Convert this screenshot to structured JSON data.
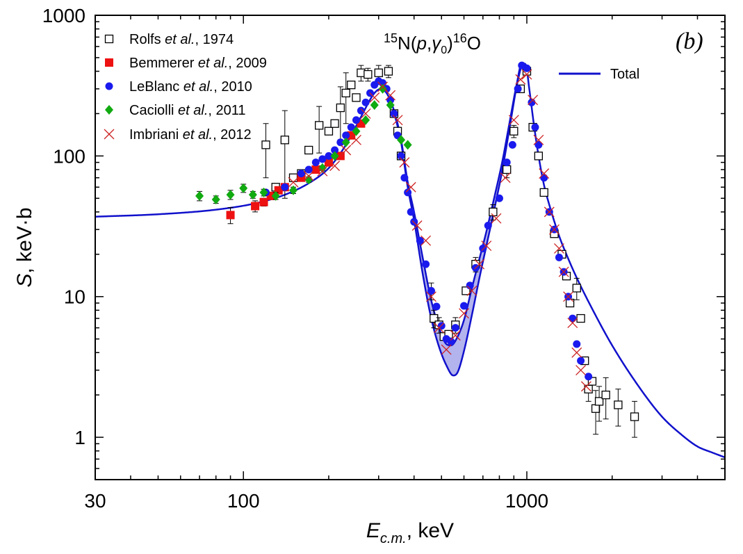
{
  "chart_data": {
    "type": "scatter",
    "xscale": "log",
    "yscale": "log",
    "xlim": [
      30,
      5000
    ],
    "ylim": [
      0.5,
      1000
    ],
    "panel_label": "(b)",
    "reaction": {
      "pre_sup": "15",
      "element": "N",
      "paren_open": "(",
      "projectile": "p",
      "comma": ",",
      "gamma": "γ",
      "gamma_sub": "0",
      "paren_close": ")",
      "post_sup": "16",
      "product": "O"
    },
    "xlabel": {
      "symbol": "E",
      "subscript": "c.m.",
      "rest": ", keV"
    },
    "ylabel": {
      "symbol": "S",
      "rest": ", keV·b"
    },
    "x_ticks": [
      {
        "value": 30,
        "label": "30"
      },
      {
        "value": 100,
        "label": "100"
      },
      {
        "value": 1000,
        "label": "1000"
      }
    ],
    "y_ticks": [
      {
        "value": 1,
        "label": "1"
      },
      {
        "value": 10,
        "label": "10"
      },
      {
        "value": 100,
        "label": "100"
      },
      {
        "value": 1000,
        "label": "1000"
      }
    ],
    "fit": {
      "name": "Total",
      "color": "#1111cc",
      "band_color": "#b3b3ee",
      "upper_x": [
        30,
        50,
        80,
        110,
        140,
        170,
        200,
        230,
        260,
        290,
        305,
        320,
        340,
        360,
        380,
        400,
        430,
        460,
        490,
        520,
        540,
        570,
        600,
        640,
        680,
        720,
        770,
        820,
        870,
        920,
        960,
        990,
        1020,
        1060,
        1100,
        1150,
        1200,
        1300,
        1400,
        1500,
        1700,
        2000,
        2500,
        3000,
        3500,
        4000,
        4500,
        5000
      ],
      "upper_y": [
        37,
        38.5,
        41.5,
        46,
        53,
        64,
        82,
        120,
        190,
        280,
        300,
        280,
        210,
        130,
        65,
        40,
        18.5,
        9.4,
        6.0,
        4.6,
        4.5,
        5.2,
        6.8,
        11.5,
        18.5,
        29,
        52,
        92,
        175,
        320,
        455,
        450,
        300,
        165,
        100,
        62,
        45,
        27,
        18.6,
        13.6,
        8.2,
        4.5,
        2.25,
        1.4,
        1.05,
        0.86,
        0.78,
        0.72
      ],
      "lower_x": [
        340,
        360,
        380,
        400,
        430,
        460,
        490,
        520,
        550,
        570,
        600,
        640,
        680,
        720,
        770,
        820,
        870,
        920,
        960
      ],
      "lower_y": [
        205,
        125,
        60,
        35,
        14.2,
        7.0,
        4.4,
        3.25,
        2.75,
        2.9,
        4.1,
        7.4,
        13.5,
        23,
        43,
        80,
        160,
        310,
        455
      ]
    },
    "series": [
      {
        "name": "Rolfs et al., 1974",
        "label_pre": "Rolfs ",
        "label_ital": "et al.",
        "label_post": ", 1974",
        "marker": "open-square",
        "color": "#000000",
        "points": [
          [
            120,
            120,
            50
          ],
          [
            130,
            60,
            0
          ],
          [
            140,
            130,
            80
          ],
          [
            150,
            70,
            0
          ],
          [
            160,
            75,
            0
          ],
          [
            170,
            110,
            0
          ],
          [
            185,
            165,
            60
          ],
          [
            200,
            150,
            0
          ],
          [
            210,
            170,
            0
          ],
          [
            220,
            220,
            90
          ],
          [
            230,
            280,
            110
          ],
          [
            240,
            320,
            0
          ],
          [
            250,
            260,
            0
          ],
          [
            260,
            390,
            50
          ],
          [
            275,
            380,
            40
          ],
          [
            300,
            390,
            50
          ],
          [
            325,
            400,
            40
          ],
          [
            340,
            200,
            0
          ],
          [
            350,
            150,
            0
          ],
          [
            360,
            100,
            0
          ],
          [
            470,
            7.0,
            1.0
          ],
          [
            490,
            6.3,
            0.8
          ],
          [
            510,
            5.2,
            0
          ],
          [
            530,
            5.4,
            0
          ],
          [
            560,
            6.3,
            0.8
          ],
          [
            610,
            11,
            0
          ],
          [
            660,
            17,
            2
          ],
          [
            760,
            40,
            5
          ],
          [
            850,
            80,
            10
          ],
          [
            900,
            150,
            15
          ],
          [
            950,
            300,
            0
          ],
          [
            1000,
            400,
            0
          ],
          [
            1050,
            160,
            0
          ],
          [
            1100,
            100,
            0
          ],
          [
            1150,
            55,
            0
          ],
          [
            1250,
            28,
            0
          ],
          [
            1330,
            20,
            0
          ],
          [
            1380,
            14,
            0
          ],
          [
            1420,
            9,
            0
          ],
          [
            1500,
            11.5,
            2
          ],
          [
            1550,
            7,
            0
          ],
          [
            1600,
            3.5,
            0
          ],
          [
            1650,
            2.2,
            0.4
          ],
          [
            1700,
            2.5,
            0
          ],
          [
            1750,
            1.6,
            0.55
          ],
          [
            1800,
            1.8,
            0.5
          ],
          [
            1900,
            2.0,
            0.65
          ],
          [
            2100,
            1.7,
            0.5
          ],
          [
            2400,
            1.4,
            0.4
          ]
        ]
      },
      {
        "name": "Bemmerer et al., 2009",
        "label_pre": "Bemmerer ",
        "label_ital": "et al.",
        "label_post": ", 2009",
        "marker": "filled-square",
        "color": "#ee1111",
        "points": [
          [
            90,
            38,
            5
          ],
          [
            110,
            44,
            4
          ],
          [
            118,
            47,
            3
          ],
          [
            125,
            52,
            3
          ],
          [
            133,
            57,
            3
          ],
          [
            140,
            60,
            3
          ],
          [
            160,
            70,
            0
          ],
          [
            180,
            80,
            0
          ],
          [
            200,
            90,
            0
          ],
          [
            220,
            100,
            0
          ],
          [
            240,
            140,
            0
          ],
          [
            260,
            170,
            0
          ]
        ]
      },
      {
        "name": "LeBlanc et al., 2010",
        "label_pre": "LeBlanc ",
        "label_ital": "et al.",
        "label_post": ", 2010",
        "marker": "filled-circle",
        "color": "#1a1aee",
        "points": [
          [
            120,
            55,
            0
          ],
          [
            140,
            60,
            0
          ],
          [
            160,
            75,
            0
          ],
          [
            170,
            80,
            0
          ],
          [
            180,
            90,
            0
          ],
          [
            190,
            95,
            0
          ],
          [
            200,
            100,
            0
          ],
          [
            210,
            110,
            0
          ],
          [
            220,
            125,
            0
          ],
          [
            230,
            140,
            0
          ],
          [
            240,
            160,
            0
          ],
          [
            250,
            180,
            0
          ],
          [
            260,
            210,
            0
          ],
          [
            270,
            240,
            0
          ],
          [
            280,
            280,
            0
          ],
          [
            290,
            320,
            0
          ],
          [
            300,
            340,
            0
          ],
          [
            310,
            330,
            0
          ],
          [
            320,
            300,
            0
          ],
          [
            330,
            250,
            0
          ],
          [
            340,
            200,
            0
          ],
          [
            350,
            140,
            0
          ],
          [
            360,
            100,
            0
          ],
          [
            370,
            70,
            0
          ],
          [
            380,
            55,
            0
          ],
          [
            390,
            40,
            0
          ],
          [
            400,
            34,
            0
          ],
          [
            420,
            25,
            0
          ],
          [
            440,
            17,
            0
          ],
          [
            460,
            11,
            1.5
          ],
          [
            480,
            8.5,
            0
          ],
          [
            500,
            6.2,
            0
          ],
          [
            520,
            5.0,
            0
          ],
          [
            540,
            4.8,
            0
          ],
          [
            560,
            6.0,
            0
          ],
          [
            600,
            8.6,
            0
          ],
          [
            630,
            12,
            0
          ],
          [
            660,
            16,
            0
          ],
          [
            700,
            22,
            0
          ],
          [
            730,
            32,
            0
          ],
          [
            800,
            50,
            0
          ],
          [
            850,
            90,
            0
          ],
          [
            890,
            120,
            0
          ],
          [
            930,
            300,
            0
          ],
          [
            960,
            440,
            0
          ],
          [
            1000,
            420,
            0
          ],
          [
            1040,
            240,
            0
          ],
          [
            1070,
            160,
            0
          ],
          [
            1100,
            120,
            0
          ],
          [
            1150,
            70,
            0
          ],
          [
            1200,
            40,
            0
          ],
          [
            1250,
            30,
            0
          ],
          [
            1300,
            19,
            0
          ],
          [
            1350,
            15,
            0
          ],
          [
            1400,
            10,
            0
          ],
          [
            1450,
            7,
            0
          ],
          [
            1500,
            4.6,
            0
          ],
          [
            1550,
            3.5,
            0
          ],
          [
            1650,
            2.7,
            0
          ]
        ]
      },
      {
        "name": "Caciolli et al., 2011",
        "label_pre": "Caciolli ",
        "label_ital": "et al.",
        "label_post": ", 2011",
        "marker": "filled-diamond",
        "color": "#11aa11",
        "points": [
          [
            70,
            52,
            4
          ],
          [
            80,
            49,
            3
          ],
          [
            90,
            53,
            4
          ],
          [
            100,
            59,
            4
          ],
          [
            108,
            53,
            3
          ],
          [
            118,
            55,
            3
          ],
          [
            130,
            52,
            3
          ],
          [
            150,
            57,
            3
          ],
          [
            170,
            68,
            3
          ],
          [
            190,
            82,
            3
          ],
          [
            210,
            100,
            3
          ],
          [
            230,
            125,
            0
          ],
          [
            250,
            150,
            0
          ],
          [
            270,
            180,
            0
          ],
          [
            290,
            230,
            0
          ],
          [
            310,
            300,
            0
          ],
          [
            330,
            230,
            0
          ],
          [
            360,
            130,
            0
          ],
          [
            380,
            120,
            0
          ]
        ]
      },
      {
        "name": "Imbriani et al., 2012",
        "label_pre": "Imbriani ",
        "label_ital": "et al.",
        "label_post": ", 2012",
        "marker": "cross",
        "color": "#cc2222",
        "points": [
          [
            150,
            65,
            0
          ],
          [
            170,
            72,
            0
          ],
          [
            190,
            78,
            0
          ],
          [
            210,
            85,
            0
          ],
          [
            230,
            110,
            0
          ],
          [
            250,
            130,
            0
          ],
          [
            270,
            200,
            0
          ],
          [
            290,
            260,
            0
          ],
          [
            310,
            310,
            0
          ],
          [
            330,
            270,
            0
          ],
          [
            350,
            180,
            0
          ],
          [
            370,
            90,
            0
          ],
          [
            390,
            60,
            0
          ],
          [
            410,
            32,
            0
          ],
          [
            440,
            25,
            0
          ],
          [
            460,
            10,
            0
          ],
          [
            490,
            6.0,
            0
          ],
          [
            520,
            4.2,
            0
          ],
          [
            560,
            5.3,
            0
          ],
          [
            600,
            7.6,
            0
          ],
          [
            640,
            11,
            0
          ],
          [
            680,
            17,
            0
          ],
          [
            720,
            23,
            0
          ],
          [
            780,
            36,
            0
          ],
          [
            840,
            70,
            0
          ],
          [
            900,
            180,
            0
          ],
          [
            950,
            350,
            0
          ],
          [
            1000,
            380,
            0
          ],
          [
            1050,
            250,
            0
          ],
          [
            1100,
            130,
            0
          ],
          [
            1150,
            75,
            0
          ],
          [
            1200,
            40,
            0
          ],
          [
            1250,
            30,
            0
          ],
          [
            1300,
            22,
            0
          ],
          [
            1350,
            15,
            0
          ],
          [
            1400,
            10,
            0
          ],
          [
            1450,
            6.5,
            0
          ],
          [
            1500,
            4.0,
            0
          ],
          [
            1550,
            3.0,
            0
          ],
          [
            1620,
            2.3,
            0
          ]
        ]
      }
    ],
    "legend": {
      "position": "top-left",
      "fit_position": "top-right"
    }
  }
}
